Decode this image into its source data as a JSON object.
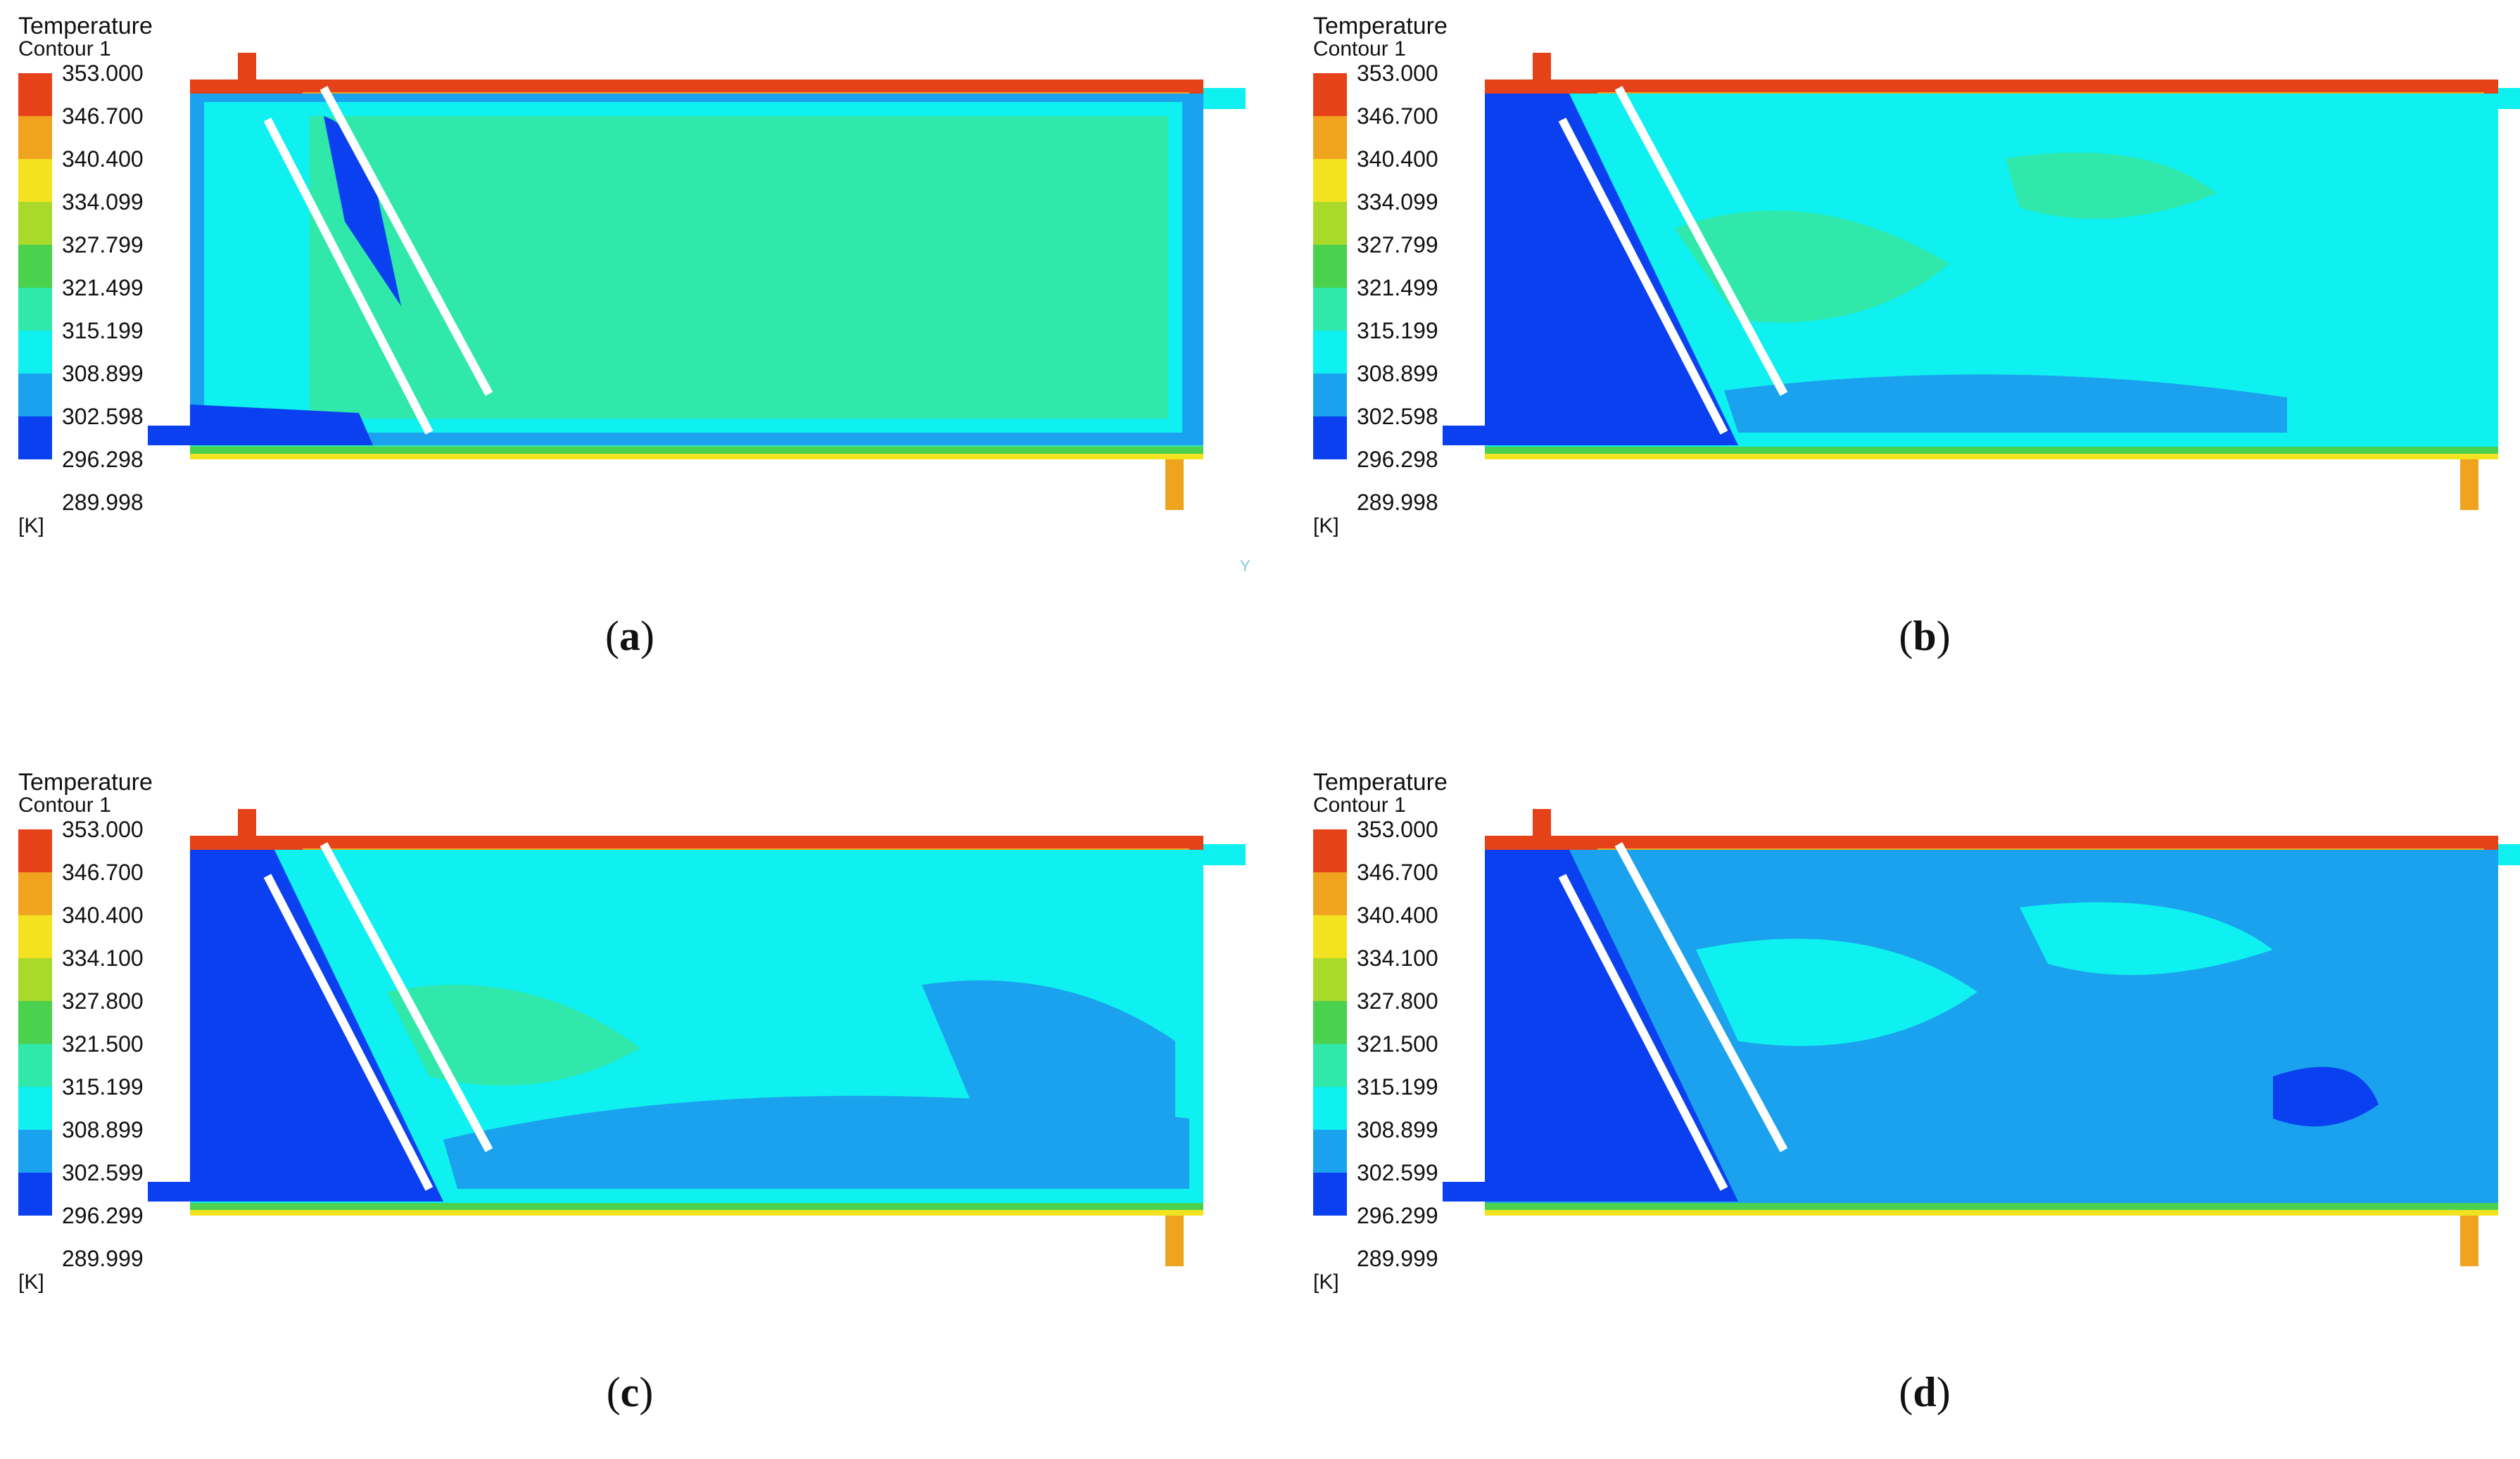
{
  "legend_colors": [
    "#e6421a",
    "#f0a31e",
    "#f3e21f",
    "#a9d92a",
    "#4ad14d",
    "#2fe8a9",
    "#0ff0f0",
    "#1aa2ee",
    "#0a40f0"
  ],
  "fill_colors": {
    "hot": "#e6421a",
    "orange": "#f0a31e",
    "yellow": "#f3e21f",
    "lime": "#a9d92a",
    "green": "#4ad14d",
    "teal": "#2fe8a9",
    "cyan": "#0ff0f0",
    "lightblue": "#1aa2ee",
    "blue": "#0a40f0",
    "baffle": "#ffffff"
  },
  "axis_marker": "Y",
  "panels": {
    "a": {
      "legend_title": "Temperature",
      "legend_subtitle": "Contour 1",
      "ticks": [
        "353.000",
        "346.700",
        "340.400",
        "334.099",
        "327.799",
        "321.499",
        "315.199",
        "308.899",
        "302.598",
        "296.298",
        "289.998"
      ],
      "unit": "[K]",
      "label": "a",
      "body_color": "#2fe8a9",
      "state": "uniform warm core"
    },
    "b": {
      "legend_title": "Temperature",
      "legend_subtitle": "Contour 1",
      "ticks": [
        "353.000",
        "346.700",
        "340.400",
        "334.099",
        "327.799",
        "321.499",
        "315.199",
        "308.899",
        "302.598",
        "296.298",
        "289.998"
      ],
      "unit": "[K]",
      "label": "b",
      "body_color": "#0ff0f0",
      "state": "mixing"
    },
    "c": {
      "legend_title": "Temperature",
      "legend_subtitle": "Contour 1",
      "ticks": [
        "353.000",
        "346.700",
        "340.400",
        "334.100",
        "327.800",
        "321.500",
        "315.199",
        "308.899",
        "302.599",
        "296.299",
        "289.999"
      ],
      "unit": "[K]",
      "label": "c",
      "body_color": "#0ff0f0",
      "state": "cooling"
    },
    "d": {
      "legend_title": "Temperature",
      "legend_subtitle": "Contour 1",
      "ticks": [
        "353.000",
        "346.700",
        "340.400",
        "334.100",
        "327.800",
        "321.500",
        "315.199",
        "308.899",
        "302.599",
        "296.299",
        "289.999"
      ],
      "unit": "[K]",
      "label": "d",
      "body_color": "#1aa2ee",
      "state": "cooled"
    }
  }
}
